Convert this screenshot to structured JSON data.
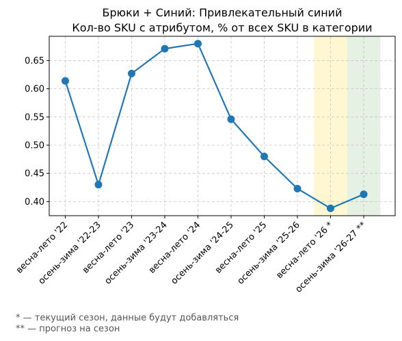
{
  "chart_data": {
    "type": "line",
    "title": "Брюки + Синий: Привлекательный синий",
    "subtitle": "Кол-во SKU с атрибутом, % от всех SKU в категории",
    "categories": [
      "весна-лето '22",
      "осень-зима '22-23",
      "весна-лето '23",
      "осень-зима '23-24",
      "весна-лето '24",
      "осень-зима '24-25",
      "весна-лето '25",
      "осень-зима '25-26",
      "весна-лето '26 *",
      "осень-зима '26-27 **"
    ],
    "series": [
      {
        "values": [
          0.614,
          0.43,
          0.627,
          0.671,
          0.68,
          0.546,
          0.48,
          0.423,
          0.388,
          0.413
        ],
        "color": "#1f77b4"
      }
    ],
    "ylim": [
      0.375,
      0.693
    ],
    "yticks": [
      0.4,
      0.45,
      0.5,
      0.55,
      0.6,
      0.65
    ],
    "ytick_labels": [
      "0.40",
      "0.45",
      "0.50",
      "0.55",
      "0.60",
      "0.65"
    ],
    "grid": true,
    "highlights": [
      {
        "category_index": 8,
        "color": "#fff2b3",
        "meaning": "current"
      },
      {
        "category_index": 9,
        "color": "#d4e8d0",
        "meaning": "forecast"
      }
    ],
    "xlabel": "",
    "ylabel": ""
  },
  "footnotes": {
    "current": "* — текущий сезон, данные будут добавляться",
    "forecast": "** — прогноз на сезон"
  }
}
